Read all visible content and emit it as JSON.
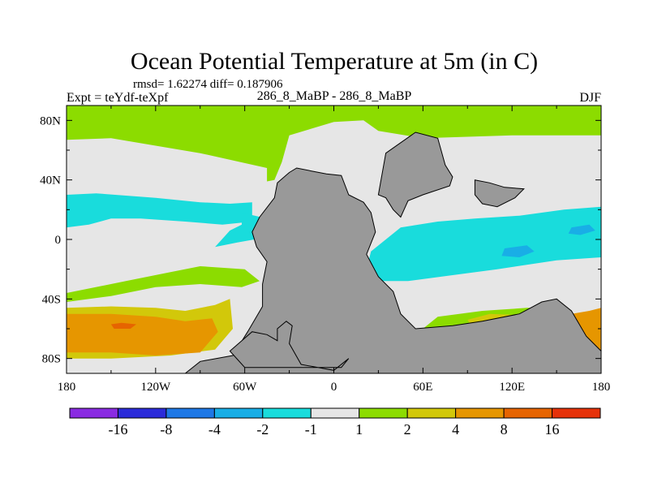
{
  "chart_data": {
    "type": "heatmap",
    "title": "Ocean Potential Temperature at 5m (in C)",
    "stats_text": "rmsd= 1.62274 diff= 0.187906",
    "left_label": "Expt = teYdf-teXpf",
    "center_label": "286_8_MaBP - 286_8_MaBP",
    "right_label": "DJF",
    "xlim": [
      -180,
      180
    ],
    "ylim": [
      -90,
      90
    ],
    "x_ticks": [
      {
        "value": -180,
        "label": "180"
      },
      {
        "value": -120,
        "label": "120W"
      },
      {
        "value": -60,
        "label": "60W"
      },
      {
        "value": 0,
        "label": "0"
      },
      {
        "value": 60,
        "label": "60E"
      },
      {
        "value": 120,
        "label": "120E"
      },
      {
        "value": 180,
        "label": "180"
      }
    ],
    "y_ticks": [
      {
        "value": 80,
        "label": "80N"
      },
      {
        "value": 40,
        "label": "40N"
      },
      {
        "value": 0,
        "label": "0"
      },
      {
        "value": -40,
        "label": "40S"
      },
      {
        "value": -80,
        "label": "80S"
      }
    ],
    "colorbar": {
      "levels": [
        "-16",
        "-8",
        "-4",
        "-2",
        "-1",
        "1",
        "2",
        "4",
        "8",
        "16"
      ],
      "colors": [
        "#8a2be2",
        "#2b2bd9",
        "#1e78e6",
        "#19aee6",
        "#19dcdc",
        "#e6e6e6",
        "#8cdc00",
        "#d2c80a",
        "#e69600",
        "#e66400",
        "#e6320a"
      ]
    },
    "land_color": "#999999",
    "regions": [
      {
        "name": "north-high-lat-warm",
        "bin": "1 to 2",
        "color": "#8cdc00",
        "polygon": [
          [
            -180,
            90
          ],
          [
            180,
            90
          ],
          [
            180,
            70
          ],
          [
            120,
            70
          ],
          [
            60,
            68
          ],
          [
            30,
            73
          ],
          [
            20,
            80
          ],
          [
            0,
            79
          ],
          [
            -30,
            70
          ],
          [
            -35,
            52
          ],
          [
            -40,
            40
          ],
          [
            -45,
            39
          ],
          [
            -45,
            48
          ],
          [
            -90,
            58
          ],
          [
            -150,
            68
          ],
          [
            -180,
            67
          ]
        ]
      },
      {
        "name": "north-pacific-cool",
        "bin": "-2 to -1",
        "color": "#19dcdc",
        "polygon": [
          [
            -180,
            30
          ],
          [
            -160,
            31
          ],
          [
            -120,
            28
          ],
          [
            -90,
            25
          ],
          [
            -70,
            24
          ],
          [
            -55,
            25
          ],
          [
            -55,
            12
          ],
          [
            -75,
            10
          ],
          [
            -100,
            12
          ],
          [
            -130,
            14
          ],
          [
            -150,
            14
          ],
          [
            -165,
            10
          ],
          [
            -180,
            8
          ]
        ]
      },
      {
        "name": "tropical-atlantic-cool",
        "bin": "-2 to -1",
        "color": "#19dcdc",
        "polygon": [
          [
            -62,
            18
          ],
          [
            -45,
            14
          ],
          [
            -40,
            8
          ],
          [
            -48,
            1
          ],
          [
            -65,
            -2
          ],
          [
            -80,
            -5
          ],
          [
            -70,
            6
          ],
          [
            -62,
            10
          ]
        ]
      },
      {
        "name": "indian-ocean-cool",
        "bin": "-2 to -1",
        "color": "#19dcdc",
        "polygon": [
          [
            25,
            -8
          ],
          [
            45,
            8
          ],
          [
            70,
            12
          ],
          [
            95,
            14
          ],
          [
            125,
            16
          ],
          [
            155,
            20
          ],
          [
            180,
            22
          ],
          [
            180,
            -12
          ],
          [
            150,
            -14
          ],
          [
            110,
            -20
          ],
          [
            80,
            -24
          ],
          [
            50,
            -28
          ],
          [
            30,
            -28
          ],
          [
            22,
            -20
          ]
        ]
      },
      {
        "name": "indian-ocean-cold-spot",
        "bin": "-4 to -2",
        "color": "#19aee6",
        "polygon": [
          [
            115,
            -6
          ],
          [
            130,
            -4
          ],
          [
            135,
            -8
          ],
          [
            125,
            -12
          ],
          [
            113,
            -11
          ]
        ]
      },
      {
        "name": "east-indian-cold-spot",
        "bin": "-4 to -2",
        "color": "#19aee6",
        "polygon": [
          [
            160,
            8
          ],
          [
            172,
            10
          ],
          [
            176,
            6
          ],
          [
            166,
            3
          ],
          [
            158,
            4
          ]
        ]
      },
      {
        "name": "south-subtropic-green",
        "bin": "1 to 2",
        "color": "#8cdc00",
        "polygon": [
          [
            -180,
            -36
          ],
          [
            -140,
            -28
          ],
          [
            -110,
            -22
          ],
          [
            -90,
            -18
          ],
          [
            -60,
            -20
          ],
          [
            -50,
            -28
          ],
          [
            -62,
            -32
          ],
          [
            -90,
            -30
          ],
          [
            -120,
            -32
          ],
          [
            -150,
            -38
          ],
          [
            -180,
            -42
          ]
        ]
      },
      {
        "name": "indian-south-green",
        "bin": "1 to 2",
        "color": "#8cdc00",
        "polygon": [
          [
            60,
            -60
          ],
          [
            70,
            -52
          ],
          [
            100,
            -48
          ],
          [
            130,
            -46
          ],
          [
            150,
            -46
          ],
          [
            158,
            -56
          ],
          [
            140,
            -58
          ],
          [
            110,
            -60
          ],
          [
            80,
            -62
          ]
        ]
      },
      {
        "name": "indian-south-yellow",
        "bin": "2 to 4",
        "color": "#d2c80a",
        "polygon": [
          [
            90,
            -54
          ],
          [
            105,
            -50
          ],
          [
            130,
            -51
          ],
          [
            145,
            -53
          ],
          [
            140,
            -57
          ],
          [
            110,
            -58
          ],
          [
            92,
            -57
          ]
        ]
      },
      {
        "name": "southern-ocean-yellow",
        "bin": "2 to 4",
        "color": "#d2c80a",
        "polygon": [
          [
            -180,
            -46
          ],
          [
            -150,
            -45
          ],
          [
            -120,
            -46
          ],
          [
            -100,
            -48
          ],
          [
            -80,
            -44
          ],
          [
            -70,
            -40
          ],
          [
            -68,
            -60
          ],
          [
            -80,
            -74
          ],
          [
            -110,
            -78
          ],
          [
            -150,
            -80
          ],
          [
            -180,
            -80
          ]
        ]
      },
      {
        "name": "southern-ocean-orange",
        "bin": "4 to 8",
        "color": "#e69600",
        "polygon": [
          [
            -180,
            -50
          ],
          [
            -150,
            -50
          ],
          [
            -120,
            -52
          ],
          [
            -100,
            -55
          ],
          [
            -82,
            -53
          ],
          [
            -78,
            -62
          ],
          [
            -90,
            -76
          ],
          [
            -120,
            -78
          ],
          [
            -150,
            -76
          ],
          [
            -180,
            -76
          ]
        ]
      },
      {
        "name": "southern-ocean-hot-spot",
        "bin": "8 to 16",
        "color": "#e66400",
        "polygon": [
          [
            -150,
            -57
          ],
          [
            -143,
            -56
          ],
          [
            -133,
            -57
          ],
          [
            -137,
            -60
          ],
          [
            -148,
            -60
          ]
        ]
      },
      {
        "name": "southeast-orange",
        "bin": "4 to 8",
        "color": "#e69600",
        "polygon": [
          [
            160,
            -50
          ],
          [
            172,
            -48
          ],
          [
            180,
            -46
          ],
          [
            180,
            -80
          ],
          [
            166,
            -78
          ],
          [
            160,
            -66
          ]
        ]
      },
      {
        "name": "weddell-cool",
        "bin": "-4 to -2",
        "color": "#19aee6",
        "polygon": [
          [
            -42,
            -68
          ],
          [
            -30,
            -66
          ],
          [
            -26,
            -74
          ],
          [
            -36,
            -80
          ],
          [
            -46,
            -76
          ]
        ]
      },
      {
        "name": "weddell-edge-cool",
        "bin": "-2 to -1",
        "color": "#19dcdc",
        "polygon": [
          [
            -48,
            -64
          ],
          [
            -28,
            -62
          ],
          [
            -20,
            -75
          ],
          [
            -38,
            -84
          ],
          [
            -52,
            -76
          ]
        ]
      }
    ],
    "land_masses": [
      {
        "name": "pangea-west",
        "polygon": [
          [
            -30,
            45
          ],
          [
            -25,
            48
          ],
          [
            -15,
            46
          ],
          [
            -5,
            44
          ],
          [
            5,
            43
          ],
          [
            10,
            30
          ],
          [
            20,
            25
          ],
          [
            25,
            18
          ],
          [
            28,
            5
          ],
          [
            22,
            -10
          ],
          [
            30,
            -25
          ],
          [
            40,
            -35
          ],
          [
            45,
            -50
          ],
          [
            55,
            -60
          ],
          [
            80,
            -58
          ],
          [
            100,
            -55
          ],
          [
            125,
            -50
          ],
          [
            140,
            -42
          ],
          [
            150,
            -40
          ],
          [
            160,
            -48
          ],
          [
            170,
            -65
          ],
          [
            180,
            -75
          ],
          [
            180,
            -90
          ],
          [
            -100,
            -90
          ],
          [
            -90,
            -82
          ],
          [
            -68,
            -78
          ],
          [
            -58,
            -62
          ],
          [
            -48,
            -45
          ],
          [
            -48,
            -30
          ],
          [
            -45,
            -15
          ],
          [
            -52,
            -5
          ],
          [
            -55,
            5
          ],
          [
            -50,
            15
          ],
          [
            -40,
            28
          ],
          [
            -38,
            38
          ]
        ]
      },
      {
        "name": "pangea-north",
        "polygon": [
          [
            30,
            30
          ],
          [
            35,
            58
          ],
          [
            45,
            65
          ],
          [
            55,
            72
          ],
          [
            70,
            68
          ],
          [
            75,
            50
          ],
          [
            80,
            42
          ],
          [
            78,
            36
          ],
          [
            60,
            30
          ],
          [
            50,
            26
          ],
          [
            45,
            15
          ],
          [
            40,
            20
          ],
          [
            35,
            28
          ]
        ]
      },
      {
        "name": "cimmeria",
        "polygon": [
          [
            95,
            40
          ],
          [
            105,
            38
          ],
          [
            115,
            35
          ],
          [
            128,
            34
          ],
          [
            122,
            28
          ],
          [
            110,
            22
          ],
          [
            100,
            24
          ],
          [
            95,
            30
          ]
        ]
      },
      {
        "name": "weddell-ridge",
        "polygon": [
          [
            -70,
            -75
          ],
          [
            -55,
            -62
          ],
          [
            -45,
            -64
          ],
          [
            -38,
            -68
          ],
          [
            -38,
            -60
          ],
          [
            -32,
            -55
          ],
          [
            -28,
            -58
          ],
          [
            -30,
            -70
          ],
          [
            -22,
            -84
          ],
          [
            0,
            -88
          ],
          [
            10,
            -80
          ],
          [
            5,
            -86
          ],
          [
            -20,
            -86
          ],
          [
            -60,
            -86
          ]
        ]
      }
    ]
  }
}
